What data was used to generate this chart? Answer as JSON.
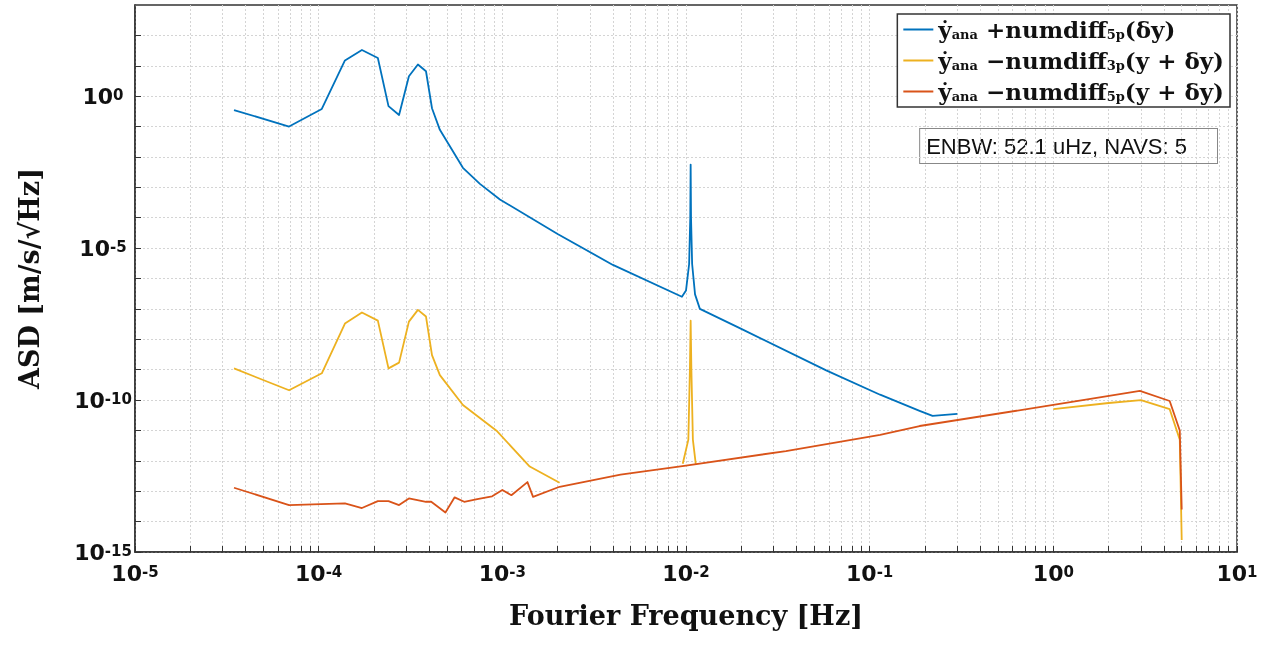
{
  "chart_data": {
    "type": "line",
    "xlabel": "Fourier Frequency [Hz]",
    "ylabel": "ASD [m/s/√Hz]",
    "annotations": [
      "ENBW: 52.1 uHz, NAVS: 5"
    ],
    "log": "xy",
    "grid": true,
    "legend": "top right",
    "xlim": [
      1e-05,
      10
    ],
    "ylim": [
      1e-15,
      1000.0
    ],
    "xticks": [
      {
        "value": 1e-05,
        "label": "10$^{-5}$"
      },
      {
        "value": 2e-05,
        "label": null
      },
      {
        "value": 3e-05,
        "label": null
      },
      {
        "value": 4e-05,
        "label": null
      },
      {
        "value": 5e-05,
        "label": null
      },
      {
        "value": 6e-05,
        "label": null
      },
      {
        "value": 7e-05,
        "label": null
      },
      {
        "value": 8e-05,
        "label": null
      },
      {
        "value": 9e-05,
        "label": null
      },
      {
        "value": 0.0001,
        "label": "10$^{-4}$"
      },
      {
        "value": 0.0002,
        "label": null
      },
      {
        "value": 0.0003,
        "label": null
      },
      {
        "value": 0.0004,
        "label": null
      },
      {
        "value": 0.0005,
        "label": null
      },
      {
        "value": 0.0006,
        "label": null
      },
      {
        "value": 0.0007,
        "label": null
      },
      {
        "value": 0.0008,
        "label": null
      },
      {
        "value": 0.0009,
        "label": null
      },
      {
        "value": 0.001,
        "label": "10$^{-3}$"
      },
      {
        "value": 0.002,
        "label": null
      },
      {
        "value": 0.003,
        "label": null
      },
      {
        "value": 0.004,
        "label": null
      },
      {
        "value": 0.005,
        "label": null
      },
      {
        "value": 0.006,
        "label": null
      },
      {
        "value": 0.007,
        "label": null
      },
      {
        "value": 0.008,
        "label": null
      },
      {
        "value": 0.009,
        "label": null
      },
      {
        "value": 0.01,
        "label": "10$^{-2}$"
      },
      {
        "value": 0.02,
        "label": null
      },
      {
        "value": 0.03,
        "label": null
      },
      {
        "value": 0.04,
        "label": null
      },
      {
        "value": 0.05,
        "label": null
      },
      {
        "value": 0.06,
        "label": null
      },
      {
        "value": 0.07,
        "label": null
      },
      {
        "value": 0.08,
        "label": null
      },
      {
        "value": 0.09,
        "label": null
      },
      {
        "value": 0.1,
        "label": "10$^{-1}$"
      },
      {
        "value": 0.2,
        "label": null
      },
      {
        "value": 0.3,
        "label": null
      },
      {
        "value": 0.4,
        "label": null
      },
      {
        "value": 0.5,
        "label": null
      },
      {
        "value": 0.6,
        "label": null
      },
      {
        "value": 0.7,
        "label": null
      },
      {
        "value": 0.8,
        "label": null
      },
      {
        "value": 0.9,
        "label": null
      },
      {
        "value": 1,
        "label": "10$^{0}$"
      },
      {
        "value": 2,
        "label": null
      },
      {
        "value": 3,
        "label": null
      },
      {
        "value": 4,
        "label": null
      },
      {
        "value": 5,
        "label": null
      },
      {
        "value": 6,
        "label": null
      },
      {
        "value": 7,
        "label": null
      },
      {
        "value": 8,
        "label": null
      },
      {
        "value": 9,
        "label": null
      },
      {
        "value": 10,
        "label": "10$^{1}$"
      }
    ],
    "yticks": [
      {
        "value": 1e-15,
        "label": "10$^{-15}$"
      },
      {
        "value": 1e-14,
        "label": null
      },
      {
        "value": 1e-13,
        "label": null
      },
      {
        "value": 1e-12,
        "label": null
      },
      {
        "value": 1e-11,
        "label": null
      },
      {
        "value": 1e-10,
        "label": "10$^{-10}$"
      },
      {
        "value": 1e-09,
        "label": null
      },
      {
        "value": 1e-08,
        "label": null
      },
      {
        "value": 1e-07,
        "label": null
      },
      {
        "value": 1e-06,
        "label": null
      },
      {
        "value": 1e-05,
        "label": "10$^{-5}$"
      },
      {
        "value": 0.0001,
        "label": null
      },
      {
        "value": 0.001,
        "label": null
      },
      {
        "value": 0.01,
        "label": null
      },
      {
        "value": 0.1,
        "label": null
      },
      {
        "value": 1,
        "label": "10$^{0}$"
      },
      {
        "value": 10,
        "label": null
      },
      {
        "value": 100,
        "label": null
      }
    ],
    "series": [
      {
        "name": "ẏ$_{ana}$ +numdiff$_{5p}$(δy)",
        "color": "#0072bd",
        "x": [
          3.46e-05,
          6.9e-05,
          0.000104,
          0.000139,
          0.000172,
          0.00021,
          0.00024,
          0.000274,
          0.00031,
          0.000347,
          0.000384,
          0.000414,
          0.000457,
          0.00061,
          0.000755,
          0.00097,
          0.002,
          0.004,
          0.0095,
          0.01,
          0.0104,
          0.01055,
          0.0106,
          0.01065,
          0.0108,
          0.0112,
          0.0119,
          0.02,
          0.058,
          0.114,
          0.187,
          0.22,
          0.3
        ],
        "values": [
          0.35,
          0.1,
          0.38,
          15,
          33,
          18,
          0.47,
          0.24,
          4.5,
          11,
          6.6,
          0.4,
          0.078,
          0.0044,
          0.0013,
          0.0004,
          2.9e-05,
          2.8e-06,
          2.5e-07,
          4e-07,
          3e-06,
          0.0001,
          0.0056,
          0.0001,
          3e-06,
          3e-07,
          1e-07,
          2.2e-08,
          9.5e-10,
          1.5e-10,
          4.4e-11,
          3e-11,
          3.5e-11
        ]
      },
      {
        "name": "ẏ$_{ana}$ −numdiff$_{3p}$(y + δy)",
        "color": "#edb120",
        "x": [
          3.46e-05,
          6.9e-05,
          0.000104,
          0.000139,
          0.000172,
          0.00021,
          0.00024,
          0.000274,
          0.00031,
          0.000347,
          0.000384,
          0.000414,
          0.000457,
          0.00061,
          0.00093,
          0.00141,
          0.00205,
          0.005,
          0.0096,
          0.0103,
          0.0105,
          0.0106,
          0.0107,
          0.0109,
          0.0113,
          0.5,
          1,
          2,
          3,
          4.3,
          4.88,
          5
        ],
        "values": [
          1.1e-09,
          2.1e-10,
          7.6e-10,
          3.3e-08,
          7.6e-08,
          4.1e-08,
          1.1e-09,
          1.7e-09,
          3.8e-08,
          9.3e-08,
          5.6e-08,
          3e-09,
          6.6e-10,
          6.9e-11,
          9.8e-12,
          6.5e-13,
          1.9e-13,
          null,
          8e-13,
          5e-12,
          1e-09,
          4.1e-08,
          1e-09,
          5e-12,
          8e-13,
          null,
          5e-11,
          8e-11,
          1e-10,
          5e-11,
          5e-12,
          2.5e-15
        ]
      },
      {
        "name": "ẏ$_{ana}$ −numdiff$_{5p}$(y + δy)",
        "color": "#d95319",
        "x": [
          3.46e-05,
          6.9e-05,
          0.000139,
          0.000172,
          0.00021,
          0.00024,
          0.000274,
          0.00031,
          0.000384,
          0.00041,
          0.00049,
          0.00055,
          0.00062,
          0.00073,
          0.00088,
          0.001,
          0.00112,
          0.00137,
          0.00147,
          0.00205,
          0.0044,
          0.01,
          0.035,
          0.114,
          0.187,
          1,
          2.96,
          4.3,
          4.88,
          5
        ],
        "values": [
          1.3e-13,
          3.5e-14,
          4e-14,
          2.8e-14,
          4.7e-14,
          4.7e-14,
          3.5e-14,
          5.8e-14,
          4.5e-14,
          4.5e-14,
          2e-14,
          6.3e-14,
          4.5e-14,
          5.5e-14,
          6.8e-14,
          1.1e-13,
          7.4e-14,
          2e-13,
          6.5e-14,
          1.4e-13,
          3.5e-13,
          7e-13,
          2.1e-12,
          7.2e-12,
          1.4e-11,
          6.9e-11,
          2e-10,
          9.3e-11,
          1e-11,
          2.5e-14
        ]
      }
    ]
  }
}
